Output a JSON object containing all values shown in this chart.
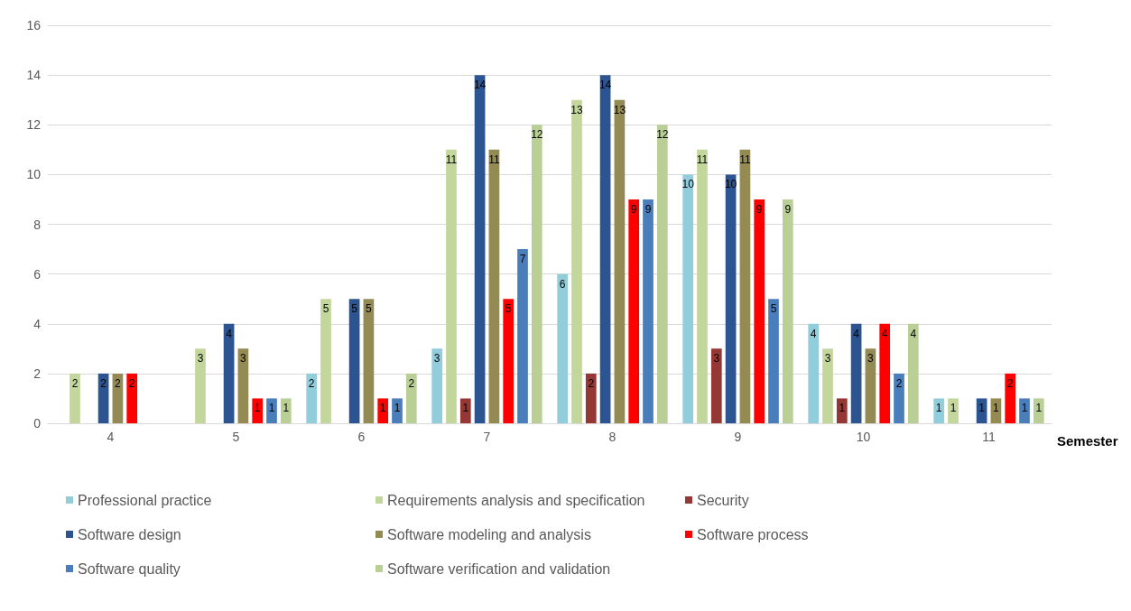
{
  "chart_data": {
    "type": "bar",
    "xlabel": "Semester",
    "categories": [
      "4",
      "5",
      "6",
      "7",
      "8",
      "9",
      "10",
      "11"
    ],
    "ylim": [
      0,
      16
    ],
    "yticks": [
      0,
      2,
      4,
      6,
      8,
      10,
      12,
      14,
      16
    ],
    "grid": "y",
    "legend": "bottom",
    "series": [
      {
        "name": "Professional practice",
        "color": "#92cddc",
        "values": [
          0,
          0,
          2,
          3,
          6,
          10,
          4,
          1
        ],
        "value_labels": [
          null,
          null,
          "2",
          "3",
          "6",
          "10",
          "4",
          "1"
        ]
      },
      {
        "name": "Requirements analysis and specification",
        "color": "#c3d69b",
        "values": [
          2,
          3,
          5,
          11,
          13,
          11,
          3,
          1
        ],
        "value_labels": [
          "2",
          "3",
          "5",
          "11",
          "13",
          "11",
          "3",
          "1"
        ]
      },
      {
        "name": "Security",
        "color": "#953735",
        "values": [
          0,
          0,
          0,
          1,
          2,
          3,
          1,
          0
        ],
        "value_labels": [
          null,
          null,
          null,
          "1",
          "2",
          "3",
          "1",
          null
        ]
      },
      {
        "name": "Software design",
        "color": "#2c5490",
        "values": [
          2,
          4,
          5,
          14,
          14,
          10,
          4,
          1
        ],
        "value_labels": [
          "2",
          "4",
          "5",
          "14",
          "14",
          "10",
          "4",
          "1"
        ]
      },
      {
        "name": "Software modeling and analysis",
        "color": "#948a54",
        "values": [
          2,
          3,
          5,
          11,
          13,
          11,
          3,
          1
        ],
        "value_labels": [
          "2",
          "3",
          "5",
          "11",
          "13",
          "11",
          "3",
          "1"
        ]
      },
      {
        "name": "Software process",
        "color": "#ff0000",
        "values": [
          2,
          1,
          1,
          5,
          9,
          9,
          4,
          2
        ],
        "value_labels": [
          "2",
          "1",
          "1",
          "5",
          "9",
          "9",
          "4",
          "2"
        ]
      },
      {
        "name": "Software quality",
        "color": "#4a7ebb",
        "values": [
          0,
          1,
          1,
          7,
          9,
          5,
          2,
          1
        ],
        "value_labels": [
          null,
          "1",
          "1",
          "7",
          "9",
          "5",
          "2",
          "1"
        ]
      },
      {
        "name": "Software verification and validation",
        "color": "#b9cf96",
        "values": [
          0,
          1,
          2,
          12,
          12,
          9,
          4,
          1
        ],
        "value_labels": [
          null,
          "1",
          "2",
          "12",
          "12",
          "9",
          "4",
          "1"
        ]
      }
    ]
  }
}
